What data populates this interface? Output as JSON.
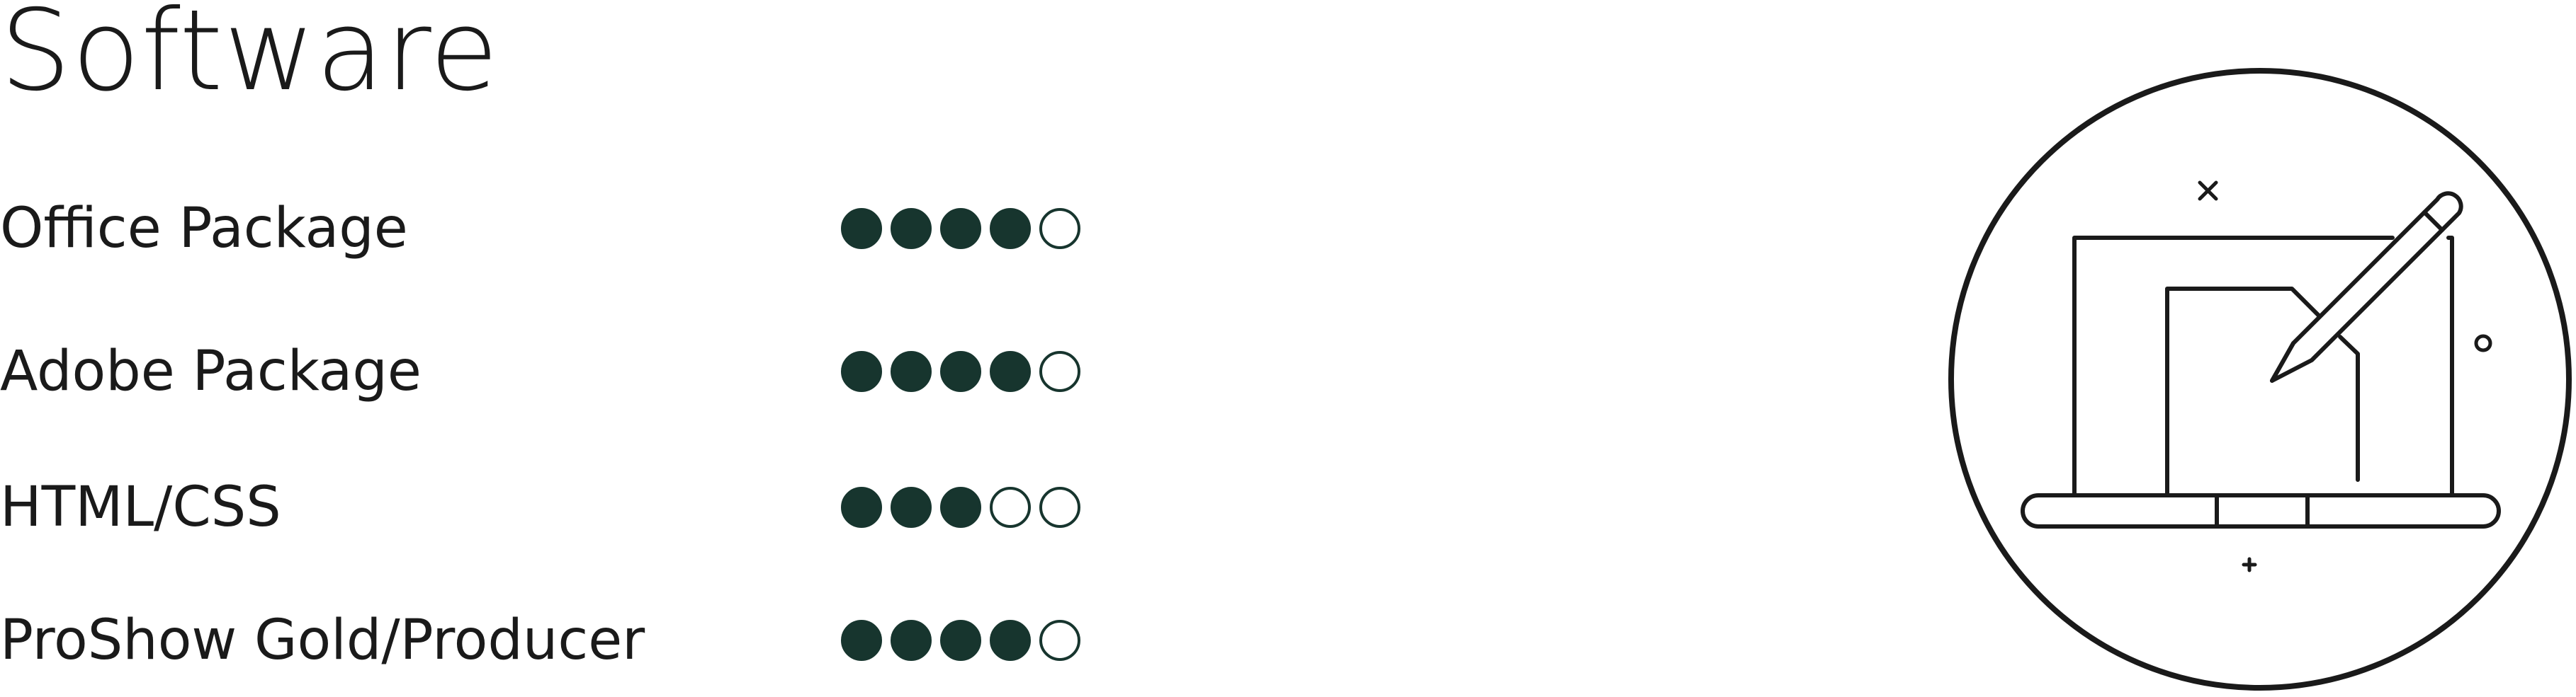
{
  "section": {
    "title": "Software"
  },
  "colors": {
    "dot_fill": "#17352e",
    "text": "#1a1a1a",
    "icon_stroke": "#1a1a1a"
  },
  "skills": [
    {
      "name": "Office Package",
      "rating": 4,
      "max": 5
    },
    {
      "name": "Adobe Package",
      "rating": 4,
      "max": 5
    },
    {
      "name": "HTML/CSS",
      "rating": 3,
      "max": 5
    },
    {
      "name": "ProShow Gold/Producer",
      "rating": 4,
      "max": 5
    }
  ],
  "illustration": {
    "icon": "laptop-with-pen-icon"
  }
}
